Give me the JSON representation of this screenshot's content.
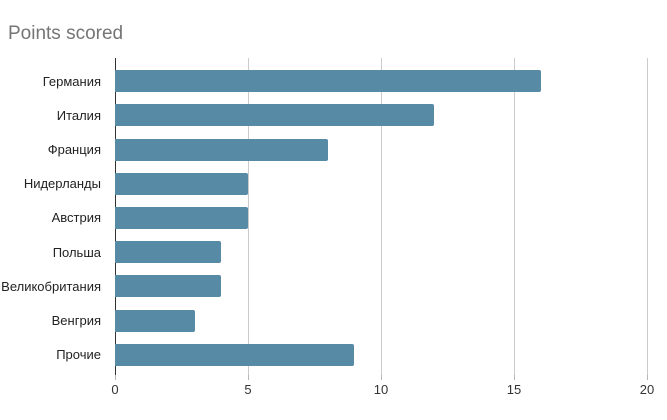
{
  "chart": {
    "title": "Points scored",
    "colors": {
      "bar": "#578aa5",
      "axis_line": "#333333",
      "gridline": "#cccccc",
      "title_text": "#757575",
      "category_label": "#222222",
      "tick_label": "#333333",
      "background": "#ffffff"
    }
  },
  "chart_data": {
    "type": "bar",
    "orientation": "horizontal",
    "title": "Points scored",
    "categories": [
      "Германия",
      "Италия",
      "Франция",
      "Нидерланды",
      "Австрия",
      "Польша",
      "Великобритания",
      "Венгрия",
      "Прочие"
    ],
    "values": [
      16,
      12,
      8,
      5,
      5,
      4,
      4,
      3,
      9
    ],
    "xlabel": "",
    "ylabel": "",
    "xlim": [
      0,
      20
    ],
    "xticks": [
      0,
      5,
      10,
      15,
      20
    ],
    "grid": true,
    "legend": "none",
    "bar_color": "#578aa5"
  }
}
